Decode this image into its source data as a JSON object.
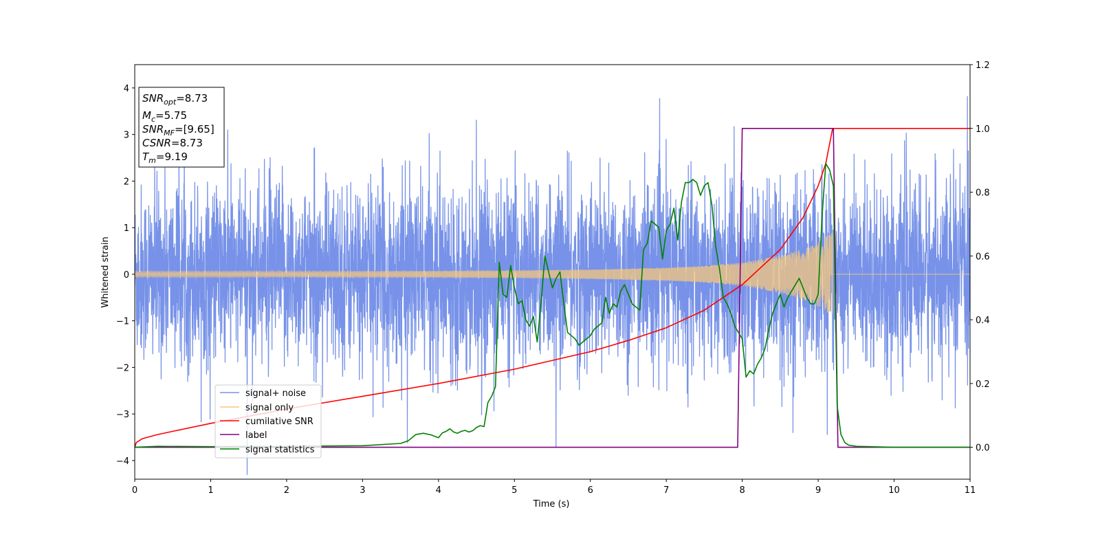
{
  "chart_data": {
    "type": "line",
    "xlabel": "Time (s)",
    "ylabel": "Whitened strain",
    "xlim": [
      0,
      11
    ],
    "ylim_left": [
      -4.4,
      4.5
    ],
    "ylim_right": [
      -0.1,
      1.2
    ],
    "xticks": [
      "0",
      "1",
      "2",
      "3",
      "4",
      "5",
      "6",
      "7",
      "8",
      "9",
      "10",
      "11"
    ],
    "yticks_left": [
      "−4",
      "−3",
      "−2",
      "−1",
      "0",
      "1",
      "2",
      "3",
      "4"
    ],
    "yticks_right": [
      "0.0",
      "0.2",
      "0.4",
      "0.6",
      "0.8",
      "1.0",
      "1.2"
    ],
    "grid": false,
    "legend_position": "lower-left",
    "info_box": [
      {
        "var": "SNR",
        "sub": "opt",
        "val": "=8.73"
      },
      {
        "var": "M",
        "sub": "c",
        "val": "=5.75"
      },
      {
        "var": "SNR",
        "sub": "MF",
        "val": "=[9.65]"
      },
      {
        "var": "CSNR",
        "sub": "",
        "val": "=8.73"
      },
      {
        "var": "T",
        "sub": "m",
        "val": "=9.19"
      }
    ],
    "series": [
      {
        "name": "signal+ noise",
        "axis": "left",
        "color": "#7792e8",
        "kind": "noise",
        "sigma": 0.95,
        "merger_time": 9.19
      },
      {
        "name": "signal only",
        "axis": "left",
        "color": "#f5c77e",
        "kind": "chirp",
        "envelope": [
          [
            0.0,
            0.06
          ],
          [
            2.0,
            0.06
          ],
          [
            4.0,
            0.07
          ],
          [
            5.0,
            0.08
          ],
          [
            6.0,
            0.1
          ],
          [
            7.0,
            0.14
          ],
          [
            7.5,
            0.18
          ],
          [
            8.0,
            0.25
          ],
          [
            8.5,
            0.4
          ],
          [
            8.9,
            0.6
          ],
          [
            9.1,
            0.8
          ],
          [
            9.19,
            0.9
          ]
        ],
        "end": 9.19
      },
      {
        "name": "cumilative SNR",
        "axis": "right",
        "color": "#ff0000",
        "x": [
          0.0,
          0.02,
          0.1,
          0.3,
          0.5,
          1.0,
          2.0,
          3.0,
          4.0,
          5.0,
          6.0,
          6.5,
          7.0,
          7.5,
          8.0,
          8.5,
          8.8,
          9.0,
          9.1,
          9.19,
          11.0
        ],
        "y": [
          0.0,
          0.015,
          0.027,
          0.04,
          0.05,
          0.075,
          0.12,
          0.16,
          0.2,
          0.245,
          0.3,
          0.335,
          0.375,
          0.43,
          0.51,
          0.62,
          0.72,
          0.82,
          0.89,
          1.0,
          1.0
        ]
      },
      {
        "name": "label",
        "axis": "right",
        "color": "#800080",
        "x": [
          0.0,
          7.94,
          8.0,
          9.2,
          9.26,
          11.0
        ],
        "y": [
          0.0,
          0.0,
          1.0,
          1.0,
          0.0,
          0.0
        ]
      },
      {
        "name": "signal statistics",
        "axis": "right",
        "color": "#008000",
        "x": [
          0.0,
          0.3,
          1.0,
          2.0,
          3.0,
          3.5,
          3.6,
          3.7,
          3.8,
          3.9,
          4.0,
          4.05,
          4.1,
          4.15,
          4.2,
          4.25,
          4.3,
          4.35,
          4.4,
          4.45,
          4.5,
          4.55,
          4.6,
          4.65,
          4.7,
          4.75,
          4.8,
          4.85,
          4.9,
          4.95,
          5.0,
          5.05,
          5.1,
          5.15,
          5.2,
          5.25,
          5.3,
          5.35,
          5.4,
          5.45,
          5.5,
          5.55,
          5.6,
          5.65,
          5.7,
          5.75,
          5.8,
          5.85,
          5.9,
          5.95,
          6.0,
          6.05,
          6.1,
          6.15,
          6.2,
          6.25,
          6.3,
          6.35,
          6.4,
          6.45,
          6.5,
          6.55,
          6.6,
          6.65,
          6.7,
          6.75,
          6.8,
          6.85,
          6.9,
          6.95,
          7.0,
          7.05,
          7.1,
          7.15,
          7.2,
          7.25,
          7.3,
          7.35,
          7.4,
          7.45,
          7.5,
          7.55,
          7.6,
          7.65,
          7.7,
          7.75,
          7.8,
          7.85,
          7.9,
          7.95,
          8.0,
          8.05,
          8.1,
          8.15,
          8.2,
          8.25,
          8.3,
          8.35,
          8.4,
          8.45,
          8.5,
          8.55,
          8.6,
          8.65,
          8.7,
          8.75,
          8.8,
          8.85,
          8.9,
          8.95,
          9.0,
          9.05,
          9.1,
          9.15,
          9.2,
          9.25,
          9.3,
          9.35,
          9.4,
          9.5,
          10.0,
          11.0
        ],
        "y": [
          0.0,
          0.003,
          0.002,
          0.003,
          0.005,
          0.012,
          0.02,
          0.04,
          0.044,
          0.039,
          0.03,
          0.045,
          0.05,
          0.058,
          0.048,
          0.044,
          0.05,
          0.053,
          0.048,
          0.052,
          0.062,
          0.068,
          0.065,
          0.14,
          0.16,
          0.19,
          0.58,
          0.48,
          0.47,
          0.57,
          0.5,
          0.45,
          0.46,
          0.4,
          0.38,
          0.41,
          0.33,
          0.45,
          0.6,
          0.55,
          0.5,
          0.53,
          0.55,
          0.45,
          0.36,
          0.35,
          0.34,
          0.32,
          0.33,
          0.34,
          0.35,
          0.37,
          0.38,
          0.39,
          0.47,
          0.42,
          0.45,
          0.44,
          0.49,
          0.51,
          0.48,
          0.45,
          0.44,
          0.43,
          0.62,
          0.64,
          0.71,
          0.7,
          0.69,
          0.59,
          0.68,
          0.7,
          0.75,
          0.65,
          0.77,
          0.83,
          0.83,
          0.84,
          0.83,
          0.79,
          0.82,
          0.83,
          0.76,
          0.63,
          0.56,
          0.47,
          0.45,
          0.42,
          0.38,
          0.36,
          0.34,
          0.22,
          0.24,
          0.23,
          0.26,
          0.28,
          0.31,
          0.37,
          0.42,
          0.45,
          0.48,
          0.44,
          0.47,
          0.49,
          0.51,
          0.53,
          0.5,
          0.47,
          0.45,
          0.45,
          0.48,
          0.72,
          0.89,
          0.87,
          0.82,
          0.13,
          0.04,
          0.015,
          0.007,
          0.003,
          0.0,
          0.0
        ]
      }
    ]
  }
}
